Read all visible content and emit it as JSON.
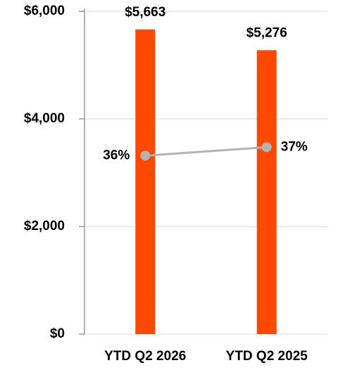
{
  "chart_data": {
    "type": "bar",
    "categories": [
      "YTD Q2 2026",
      "YTD Q2 2025"
    ],
    "series": [
      {
        "type": "bar",
        "color": "#ff4800",
        "values": [
          5663,
          5276
        ],
        "value_labels": [
          "$5,663",
          "$5,276"
        ]
      },
      {
        "type": "line",
        "axis": "y2",
        "color": "#b4b4b4",
        "values": [
          36,
          37
        ],
        "value_labels": [
          "36%",
          "37%"
        ]
      }
    ],
    "ylim": [
      0,
      6000
    ],
    "yticks": [
      {
        "value": 0,
        "label": "$0"
      },
      {
        "value": 2000,
        "label": "$2,000"
      },
      {
        "value": 4000,
        "label": "$4,000"
      },
      {
        "value": 6000,
        "label": "$6,000"
      }
    ],
    "y2lim": [
      15,
      53
    ],
    "grid": true
  }
}
